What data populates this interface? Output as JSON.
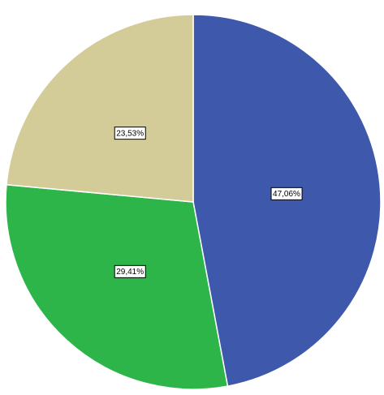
{
  "chart_data": {
    "type": "pie",
    "series": [
      {
        "name": null,
        "values": [
          47.06,
          29.41,
          23.53
        ],
        "value_labels": [
          "47,06%",
          "29,41%",
          "23,53%"
        ],
        "colors": [
          "#3e58ab",
          "#2db54a",
          "#d4cc98"
        ]
      }
    ]
  }
}
